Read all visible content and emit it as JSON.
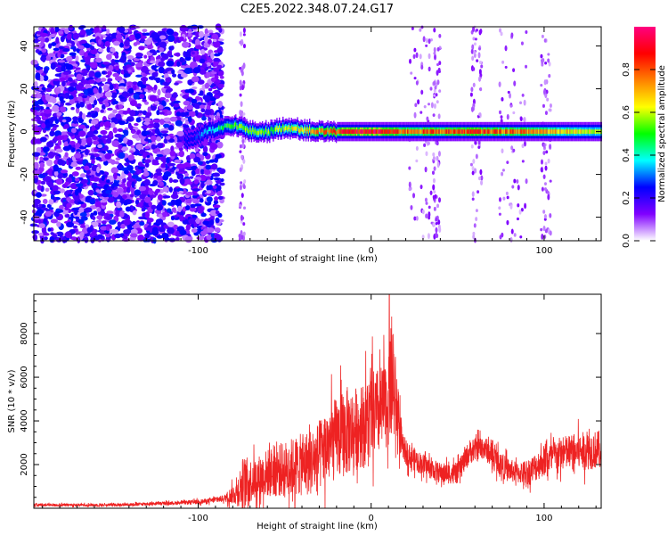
{
  "title": "C2E5.2022.348.07.24.G17",
  "colors": {
    "snr_line": "#ee2222",
    "background": "#ffffff"
  },
  "chart_data": [
    {
      "type": "heatmap",
      "xlabel": "Height of straight line (km)",
      "ylabel": "Frequency (Hz)",
      "xlim": [
        -195,
        133
      ],
      "ylim": [
        -51,
        49
      ],
      "x_ticks": [
        -100,
        0,
        100
      ],
      "x_tick_labels": [
        "-100",
        "0",
        "100"
      ],
      "y_ticks": [
        -40,
        -20,
        0,
        20,
        40
      ],
      "y_tick_labels": [
        "-40",
        "-20",
        "0",
        "20",
        "40"
      ],
      "colorbar": {
        "label": "Normalized spectral amplitude",
        "range": [
          0.0,
          1.0
        ],
        "ticks": [
          0.0,
          0.2,
          0.4,
          0.6,
          0.8
        ],
        "tick_labels": [
          "0.0",
          "0.2",
          "0.4",
          "0.6",
          "0.8"
        ],
        "colormap": [
          "#ffffff",
          "#8000ff",
          "#0000ff",
          "#00ffff",
          "#00ff00",
          "#ffff00",
          "#ff8000",
          "#ff0000",
          "#ff0080"
        ]
      },
      "ridge": {
        "description_points_x": [
          -105,
          -95,
          -85,
          -78,
          -70,
          -60,
          -50,
          -40,
          -30,
          -20,
          -10,
          0,
          20,
          60,
          100,
          133
        ],
        "description_points_y": [
          -4,
          0,
          2,
          3,
          0,
          0,
          2,
          1,
          0,
          0,
          0,
          0,
          0,
          0,
          0,
          0
        ],
        "peak_amplitude": [
          0.25,
          0.35,
          0.5,
          0.55,
          0.55,
          0.55,
          0.6,
          0.7,
          0.75,
          0.85,
          0.9,
          0.95,
          0.8,
          0.85,
          0.75,
          0.6
        ]
      },
      "noise_region_x": [
        -195,
        -86
      ]
    },
    {
      "type": "line",
      "xlabel": "Height of straight line (km)",
      "ylabel": "SNR (10 * v/v)",
      "xlim": [
        -195,
        133
      ],
      "ylim": [
        0,
        9800
      ],
      "x_ticks": [
        -100,
        0,
        100
      ],
      "x_tick_labels": [
        "-100",
        "0",
        "100"
      ],
      "y_ticks": [
        2000,
        4000,
        6000,
        8000
      ],
      "y_tick_labels": [
        "2000",
        "4000",
        "6000",
        "8000"
      ],
      "envelope_x": [
        -195,
        -150,
        -110,
        -95,
        -85,
        -78,
        -74,
        -68,
        -60,
        -50,
        -40,
        -32,
        -26,
        -20,
        -14,
        -10,
        -5,
        0,
        5,
        10,
        12,
        15,
        18,
        22,
        30,
        40,
        50,
        57,
        65,
        70,
        78,
        85,
        92,
        100,
        110,
        120,
        133
      ],
      "envelope_mean": [
        150,
        150,
        250,
        320,
        450,
        700,
        1200,
        1300,
        1600,
        1800,
        2000,
        2200,
        2800,
        3200,
        3500,
        3600,
        3800,
        4200,
        4400,
        4800,
        6000,
        4500,
        2800,
        2400,
        2000,
        1600,
        1600,
        2600,
        2800,
        2400,
        1800,
        1600,
        1700,
        2200,
        2500,
        2600,
        2700
      ],
      "envelope_spread": [
        80,
        80,
        100,
        150,
        200,
        700,
        1500,
        1200,
        1400,
        1600,
        1800,
        2000,
        2200,
        2400,
        2600,
        2400,
        2400,
        2600,
        2600,
        2400,
        3800,
        2000,
        800,
        700,
        600,
        600,
        600,
        700,
        700,
        700,
        700,
        600,
        800,
        900,
        1000,
        1100,
        1100
      ],
      "peak": {
        "x": 10.5,
        "y": 9800
      }
    }
  ]
}
